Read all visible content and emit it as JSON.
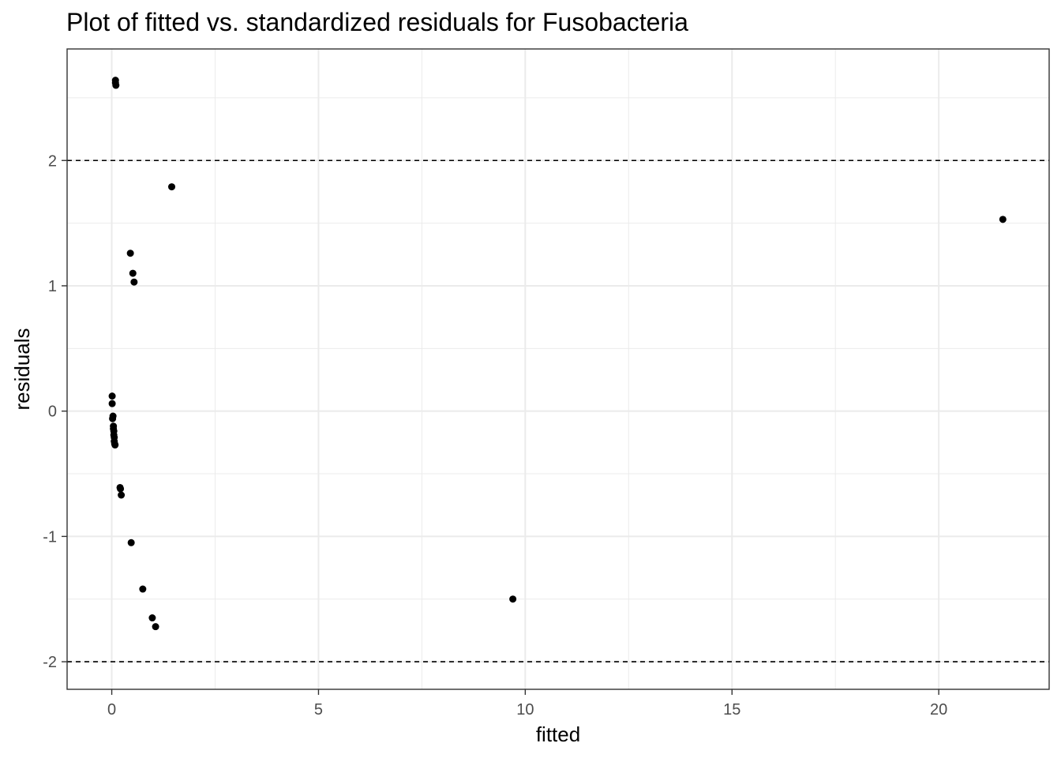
{
  "chart_data": {
    "type": "scatter",
    "title": "Plot of fitted vs. standardized residuals for Fusobacteria",
    "xlabel": "fitted",
    "ylabel": "residuals",
    "xlim": [
      -1.08,
      22.67
    ],
    "ylim": [
      -2.22,
      2.89
    ],
    "x_ticks": [
      0,
      5,
      10,
      15,
      20
    ],
    "y_ticks": [
      -2,
      -1,
      0,
      1,
      2
    ],
    "x_tick_labels": [
      "0",
      "5",
      "10",
      "15",
      "20"
    ],
    "y_tick_labels": [
      "-2",
      "-1",
      "0",
      "1",
      "2"
    ],
    "reference_lines": [
      2,
      -2
    ],
    "grid": true,
    "legend": "none",
    "colors": {
      "points": "#000000",
      "grid": "#ebebeb",
      "panel_border": "#333333",
      "reference_line": "#000000"
    },
    "points": [
      {
        "x": 0.09,
        "y": 2.64
      },
      {
        "x": 0.09,
        "y": 2.62
      },
      {
        "x": 0.1,
        "y": 2.6
      },
      {
        "x": 1.45,
        "y": 1.79
      },
      {
        "x": 21.55,
        "y": 1.53
      },
      {
        "x": 0.45,
        "y": 1.26
      },
      {
        "x": 0.51,
        "y": 1.1
      },
      {
        "x": 0.54,
        "y": 1.03
      },
      {
        "x": 0.01,
        "y": 0.12
      },
      {
        "x": 0.01,
        "y": 0.06
      },
      {
        "x": 0.03,
        "y": -0.04
      },
      {
        "x": 0.02,
        "y": -0.06
      },
      {
        "x": 0.04,
        "y": -0.12
      },
      {
        "x": 0.04,
        "y": -0.14
      },
      {
        "x": 0.05,
        "y": -0.16
      },
      {
        "x": 0.05,
        "y": -0.19
      },
      {
        "x": 0.06,
        "y": -0.21
      },
      {
        "x": 0.06,
        "y": -0.24
      },
      {
        "x": 0.07,
        "y": -0.26
      },
      {
        "x": 0.08,
        "y": -0.27
      },
      {
        "x": 0.2,
        "y": -0.61
      },
      {
        "x": 0.21,
        "y": -0.62
      },
      {
        "x": 0.23,
        "y": -0.67
      },
      {
        "x": 0.47,
        "y": -1.05
      },
      {
        "x": 0.75,
        "y": -1.42
      },
      {
        "x": 9.7,
        "y": -1.5
      },
      {
        "x": 0.98,
        "y": -1.65
      },
      {
        "x": 1.06,
        "y": -1.72
      }
    ]
  }
}
